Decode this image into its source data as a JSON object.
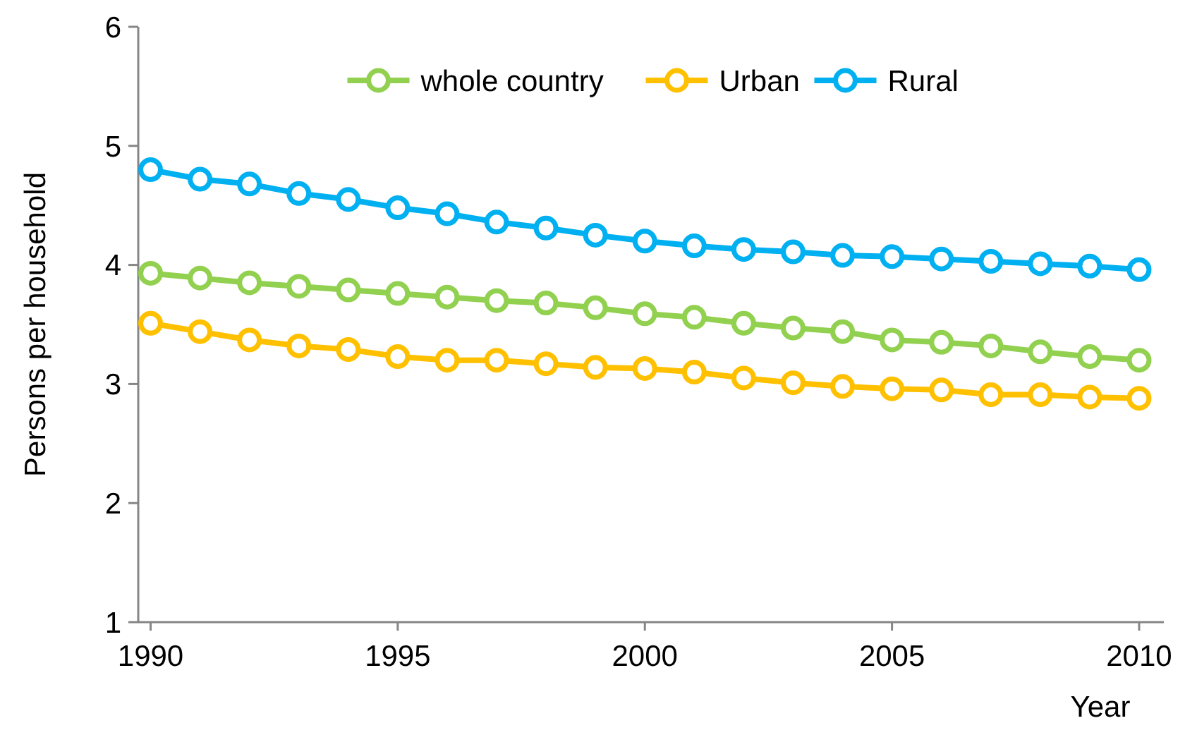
{
  "chart_data": {
    "type": "line",
    "xlabel": "Year",
    "ylabel": "Persons per household",
    "x": [
      1990,
      1991,
      1992,
      1993,
      1994,
      1995,
      1996,
      1997,
      1998,
      1999,
      2000,
      2001,
      2002,
      2003,
      2004,
      2005,
      2006,
      2007,
      2008,
      2009,
      2010
    ],
    "series": [
      {
        "name": "whole country",
        "color": "#92d050",
        "values": [
          3.93,
          3.89,
          3.85,
          3.82,
          3.79,
          3.76,
          3.73,
          3.7,
          3.68,
          3.64,
          3.59,
          3.56,
          3.51,
          3.47,
          3.44,
          3.37,
          3.35,
          3.32,
          3.27,
          3.23,
          3.2
        ]
      },
      {
        "name": "Urban",
        "color": "#ffc000",
        "values": [
          3.51,
          3.44,
          3.37,
          3.32,
          3.29,
          3.23,
          3.2,
          3.2,
          3.17,
          3.14,
          3.13,
          3.1,
          3.05,
          3.01,
          2.98,
          2.96,
          2.95,
          2.91,
          2.91,
          2.89,
          2.88
        ]
      },
      {
        "name": "Rural",
        "color": "#00b0f0",
        "values": [
          4.8,
          4.72,
          4.68,
          4.6,
          4.55,
          4.48,
          4.43,
          4.36,
          4.31,
          4.25,
          4.2,
          4.16,
          4.13,
          4.11,
          4.08,
          4.07,
          4.05,
          4.03,
          4.01,
          3.99,
          3.96
        ]
      }
    ],
    "xlim": [
      1989.75,
      2010.5
    ],
    "xticks": [
      1990,
      1995,
      2000,
      2005,
      2010
    ],
    "ylim": [
      1,
      6
    ],
    "yticks": [
      1,
      2,
      3,
      4,
      5,
      6
    ],
    "grid": false,
    "legend": "top",
    "marker": "circle",
    "line_style": "solid"
  }
}
